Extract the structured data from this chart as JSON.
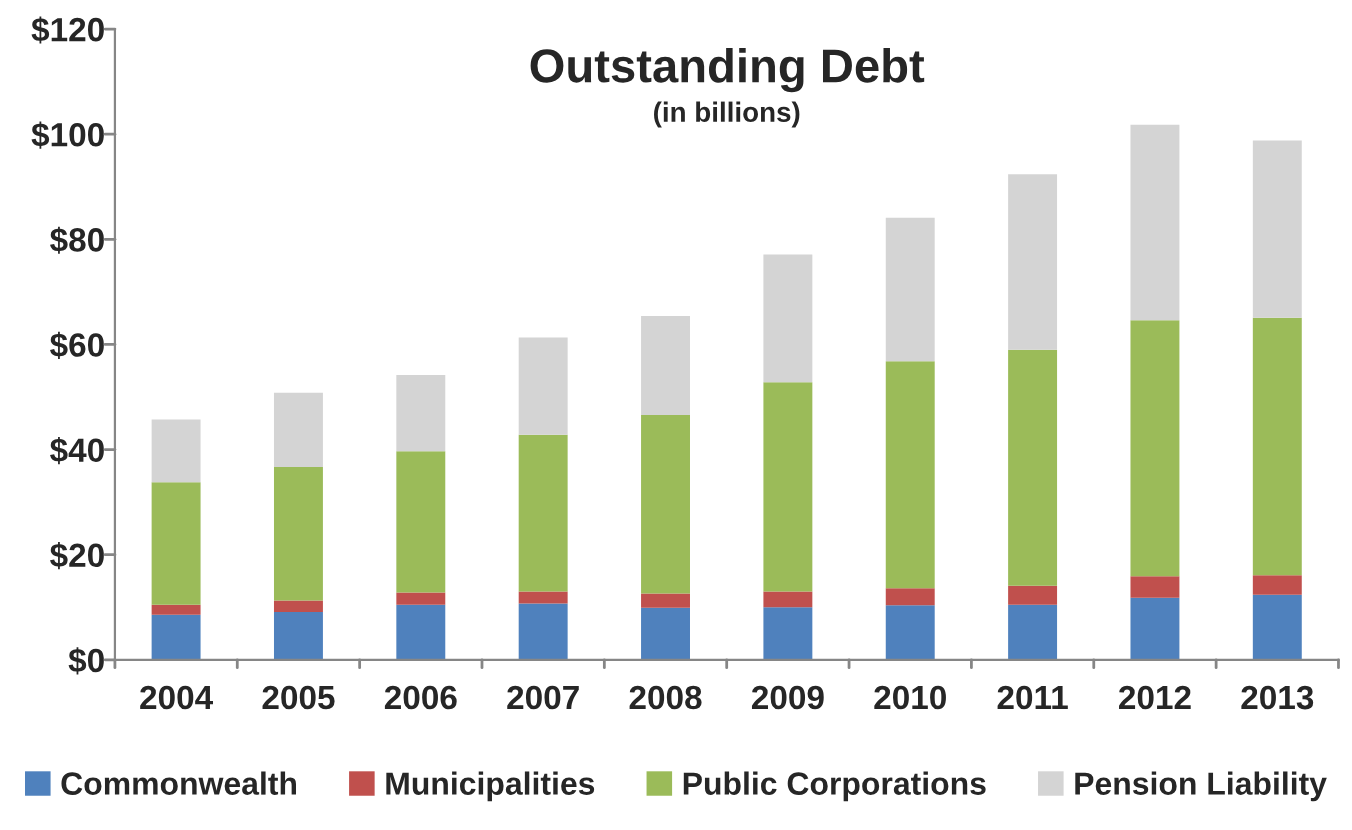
{
  "chart_data": {
    "type": "bar",
    "title": "Outstanding Debt",
    "subtitle": "(in billions)",
    "categories": [
      "2004",
      "2005",
      "2006",
      "2007",
      "2008",
      "2009",
      "2010",
      "2011",
      "2012",
      "2013"
    ],
    "stacked": true,
    "series": [
      {
        "name": "Commonwealth",
        "color": "#4f81bd",
        "values": [
          8.6,
          9.1,
          10.5,
          10.7,
          9.9,
          10.0,
          10.4,
          10.5,
          11.8,
          12.4
        ]
      },
      {
        "name": "Municipalities",
        "color": "#c0504d",
        "values": [
          1.9,
          2.2,
          2.3,
          2.3,
          2.7,
          3.0,
          3.2,
          3.6,
          4.1,
          3.7
        ]
      },
      {
        "name": "Public Corporations",
        "color": "#9bbb59",
        "values": [
          23.3,
          25.4,
          26.9,
          29.8,
          34.0,
          39.8,
          43.2,
          44.9,
          48.7,
          49.0
        ]
      },
      {
        "name": "Pension Liability",
        "color": "#d4d4d4",
        "values": [
          11.9,
          14.1,
          14.5,
          18.5,
          18.8,
          24.3,
          27.3,
          33.4,
          37.2,
          33.7
        ]
      }
    ],
    "ylim": [
      0,
      120
    ],
    "yticks": [
      {
        "value": 0,
        "label": "$0"
      },
      {
        "value": 20,
        "label": "$20"
      },
      {
        "value": 40,
        "label": "$40"
      },
      {
        "value": 60,
        "label": "$60"
      },
      {
        "value": 80,
        "label": "$80"
      },
      {
        "value": 100,
        "label": "$100"
      },
      {
        "value": 120,
        "label": "$120"
      }
    ],
    "grid": false,
    "legend": "bottom"
  }
}
